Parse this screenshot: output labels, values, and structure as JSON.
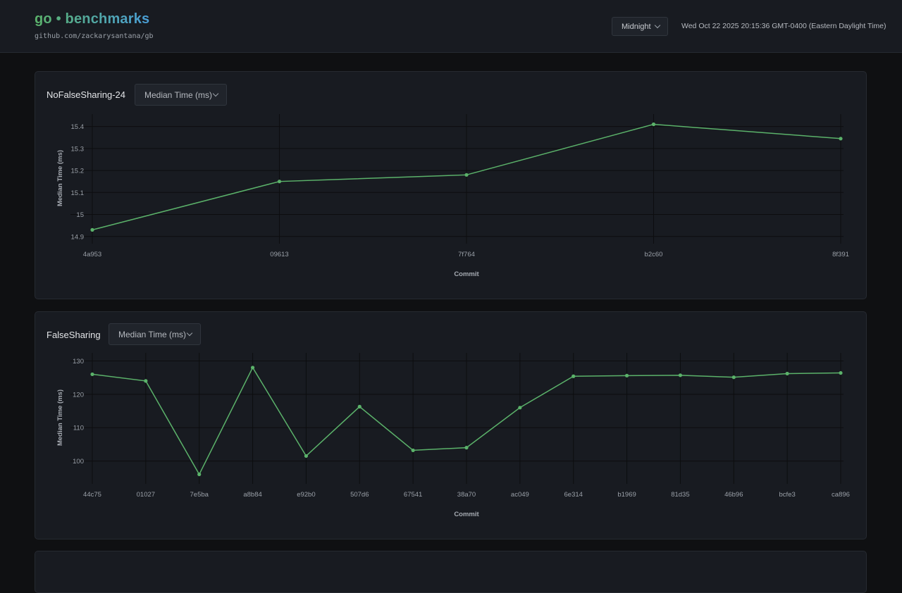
{
  "header": {
    "title": "go • benchmarks",
    "repo": "github.com/zackarysantana/gb",
    "theme": "Midnight",
    "timestamp": "Wed Oct 22 2025 20:15:36 GMT-0400 (Eastern Daylight Time)"
  },
  "colors": {
    "accent": "#5bb26a",
    "accent_alt": "#4a9fd9",
    "background": "#0f1012",
    "card": "#181b21"
  },
  "charts": [
    {
      "name": "NoFalseSharing-24",
      "metric": "Median Time (ms)"
    },
    {
      "name": "FalseSharing",
      "metric": "Median Time (ms)"
    }
  ],
  "chart_data": [
    {
      "type": "line",
      "title": "NoFalseSharing-24",
      "xlabel": "Commit",
      "ylabel": "Median Time (ms)",
      "categories": [
        "4a953",
        "09613",
        "7f764",
        "b2c60",
        "8f391"
      ],
      "values": [
        14.93,
        15.15,
        15.18,
        15.41,
        15.345
      ],
      "ylim": [
        14.88,
        15.45
      ],
      "yticks": [
        "14.9",
        "15",
        "15.1",
        "15.2",
        "15.3",
        "15.4"
      ],
      "ytick_values": [
        14.9,
        15.0,
        15.1,
        15.2,
        15.3,
        15.4
      ],
      "grid": true,
      "color": "#5bb26a"
    },
    {
      "type": "line",
      "title": "FalseSharing",
      "xlabel": "Commit",
      "ylabel": "Median Time (ms)",
      "categories": [
        "44c75",
        "01027",
        "7e5ba",
        "a8b84",
        "e92b0",
        "507d6",
        "67541",
        "38a70",
        "ac049",
        "6e314",
        "b1969",
        "81d35",
        "46b96",
        "bcfe3",
        "ca896"
      ],
      "values": [
        126,
        124,
        96,
        128,
        101.5,
        116.3,
        103.2,
        104,
        116,
        125.4,
        125.6,
        125.7,
        125.1,
        126.2,
        126.4
      ],
      "ylim": [
        94,
        132
      ],
      "yticks": [
        "100",
        "110",
        "120",
        "130"
      ],
      "ytick_values": [
        100,
        110,
        120,
        130
      ],
      "grid": true,
      "color": "#5bb26a"
    }
  ]
}
